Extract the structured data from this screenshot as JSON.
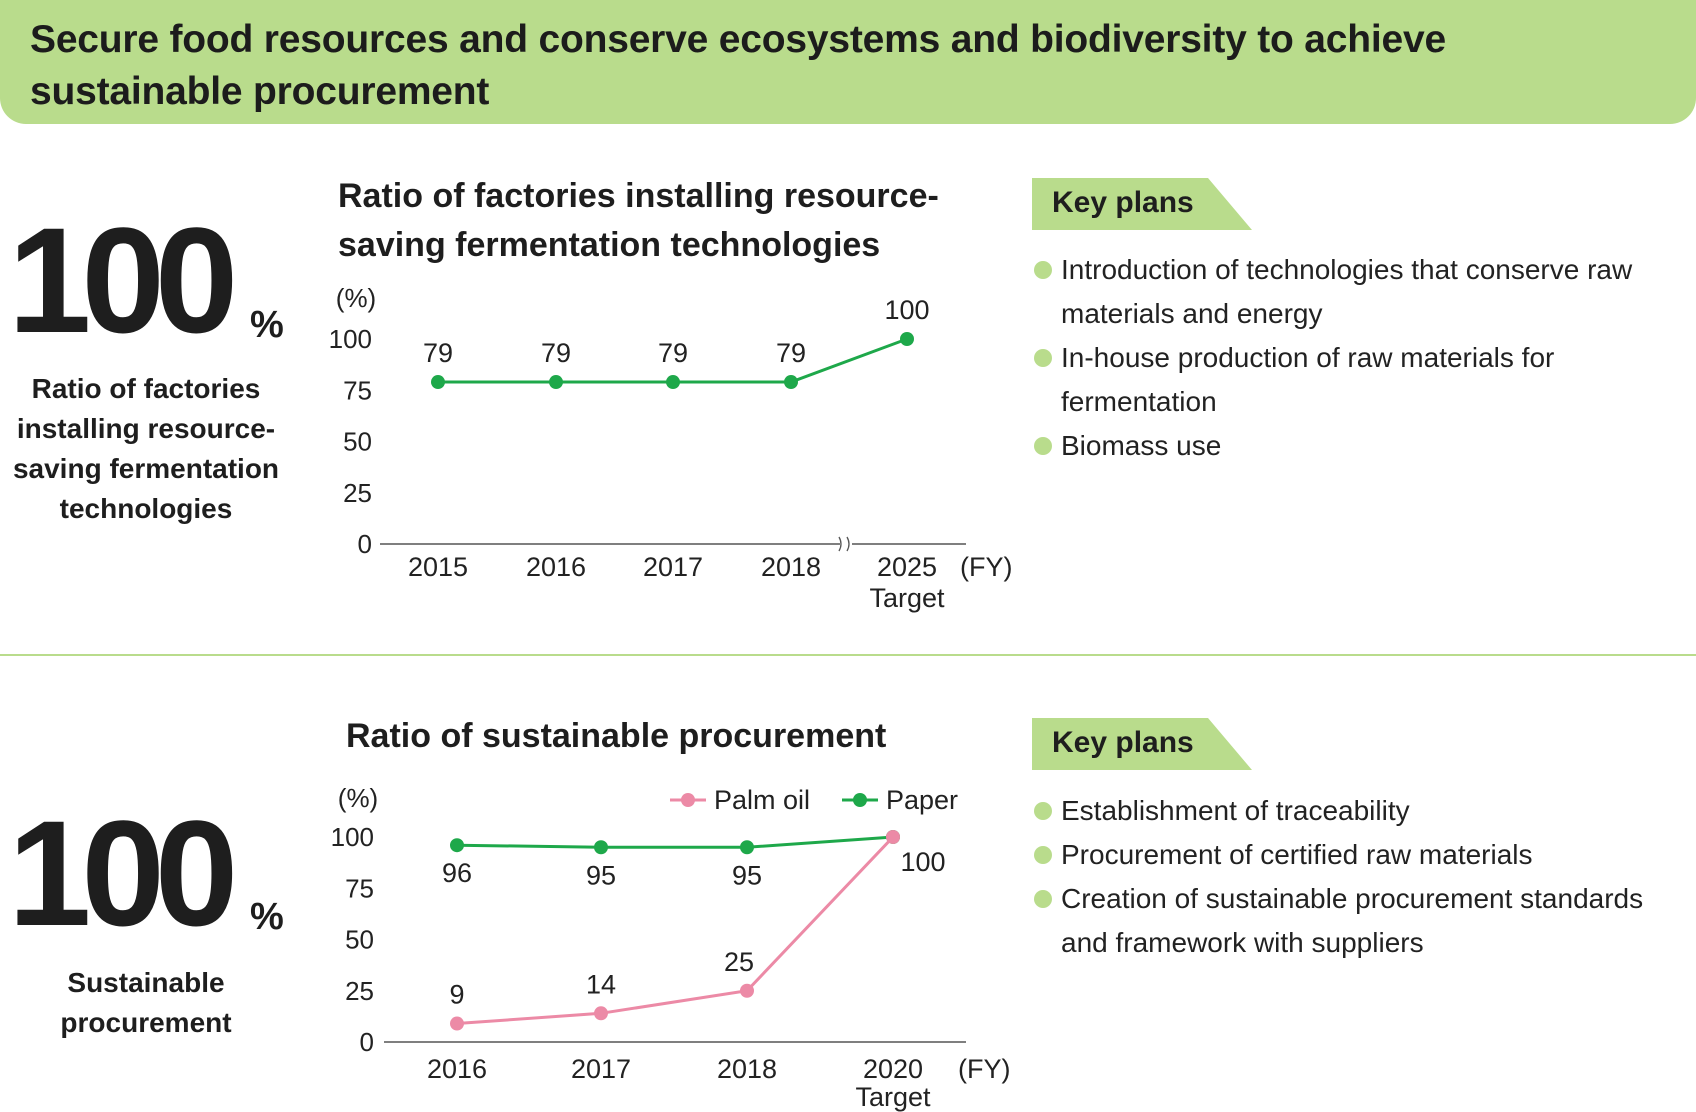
{
  "header": {
    "title_line1": "Secure food resources and conserve ecosystems and biodiversity to achieve",
    "title_line2": "sustainable procurement"
  },
  "section1": {
    "big_number": "100",
    "big_unit": "%",
    "big_label_lines": [
      "Ratio of factories",
      "installing resource-",
      "saving fermentation",
      "technologies"
    ],
    "chart_title_lines": [
      "Ratio of factories installing resource-",
      "saving fermentation technologies"
    ],
    "key_plans_label": "Key plans",
    "key_plans": [
      {
        "line1": "Introduction of technologies that conserve raw",
        "line2": "materials and energy"
      },
      {
        "line1": "In-house production of raw materials for",
        "line2": "fermentation"
      },
      {
        "line1": "Biomass use",
        "line2": ""
      }
    ]
  },
  "section2": {
    "big_number": "100",
    "big_unit": "%",
    "big_label_lines": [
      "Sustainable",
      "procurement"
    ],
    "chart_title_lines": [
      "Ratio of sustainable procurement"
    ],
    "key_plans_label": "Key plans",
    "key_plans": [
      {
        "line1": "Establishment of traceability",
        "line2": ""
      },
      {
        "line1": "Procurement of certified raw materials",
        "line2": ""
      },
      {
        "line1": "Creation of sustainable procurement standards",
        "line2": "and framework with suppliers"
      }
    ]
  },
  "colors": {
    "accent_green": "#b9dc8c",
    "series_green": "#1ea84a",
    "series_pink": "#ec8aa6"
  },
  "chart_data": [
    {
      "type": "line",
      "title": "Ratio of factories installing resource-saving fermentation technologies",
      "ylabel": "(%)",
      "xlabel": "(FY)",
      "ylim": [
        0,
        100
      ],
      "yticks": [
        0,
        25,
        50,
        75,
        100
      ],
      "categories": [
        "2015",
        "2016",
        "2017",
        "2018",
        "2025"
      ],
      "category_sublabels": [
        "",
        "",
        "",
        "",
        "Target"
      ],
      "axis_break_between": [
        "2018",
        "2025"
      ],
      "series": [
        {
          "name": "",
          "color": "#1ea84a",
          "values": [
            79,
            79,
            79,
            79,
            100
          ],
          "labels": [
            "79",
            "79",
            "79",
            "79",
            "100"
          ]
        }
      ],
      "legend": "none",
      "grid": false
    },
    {
      "type": "line",
      "title": "Ratio of sustainable procurement",
      "ylabel": "(%)",
      "xlabel": "(FY)",
      "ylim": [
        0,
        100
      ],
      "yticks": [
        0,
        25,
        50,
        75,
        100
      ],
      "categories": [
        "2016",
        "2017",
        "2018",
        "2020"
      ],
      "category_sublabels": [
        "",
        "",
        "",
        "Target"
      ],
      "series": [
        {
          "name": "Palm oil",
          "color": "#ec8aa6",
          "values": [
            9,
            14,
            25,
            100
          ],
          "labels": [
            "9",
            "14",
            "25",
            "100"
          ]
        },
        {
          "name": "Paper",
          "color": "#1ea84a",
          "values": [
            96,
            95,
            95,
            100
          ],
          "labels": [
            "96",
            "95",
            "95",
            ""
          ]
        }
      ],
      "legend": "top-right",
      "grid": false
    }
  ]
}
